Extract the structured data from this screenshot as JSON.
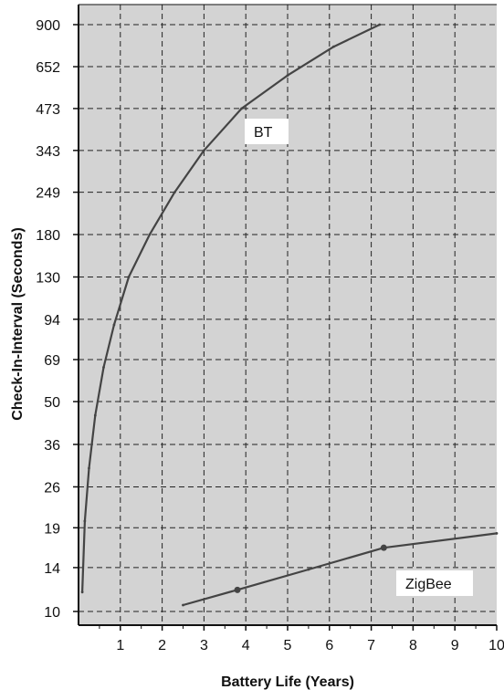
{
  "chart_data": {
    "type": "line",
    "xlabel": "Battery Life (Years)",
    "ylabel": "Check-In-Interval (Seconds)",
    "xlim": [
      0,
      10
    ],
    "x_ticks": [
      "1",
      "2",
      "3",
      "4",
      "5",
      "6",
      "7",
      "8",
      "9",
      "10"
    ],
    "y_scale": "log",
    "y_ticks": [
      "10",
      "14",
      "19",
      "26",
      "36",
      "50",
      "69",
      "94",
      "130",
      "180",
      "249",
      "343",
      "473",
      "652",
      "900"
    ],
    "ylim": [
      10,
      900
    ],
    "grid": true,
    "background": "#d3d3d3",
    "line_color": "#444444",
    "series": [
      {
        "name": "BT",
        "x": [
          0.09,
          0.15,
          0.25,
          0.4,
          0.6,
          0.85,
          1.2,
          1.7,
          2.3,
          3.0,
          3.9,
          5.0,
          6.1,
          7.2
        ],
        "y": [
          11.6,
          20,
          30,
          45,
          65,
          90,
          130,
          180,
          249,
          343,
          473,
          610,
          760,
          900
        ]
      },
      {
        "name": "ZigBee",
        "x": [
          2.5,
          3.8,
          5.5,
          7.3,
          10
        ],
        "y": [
          10.5,
          11.8,
          13.8,
          16.3,
          18.2
        ],
        "markers_x": [
          3.8,
          7.3
        ]
      }
    ]
  }
}
